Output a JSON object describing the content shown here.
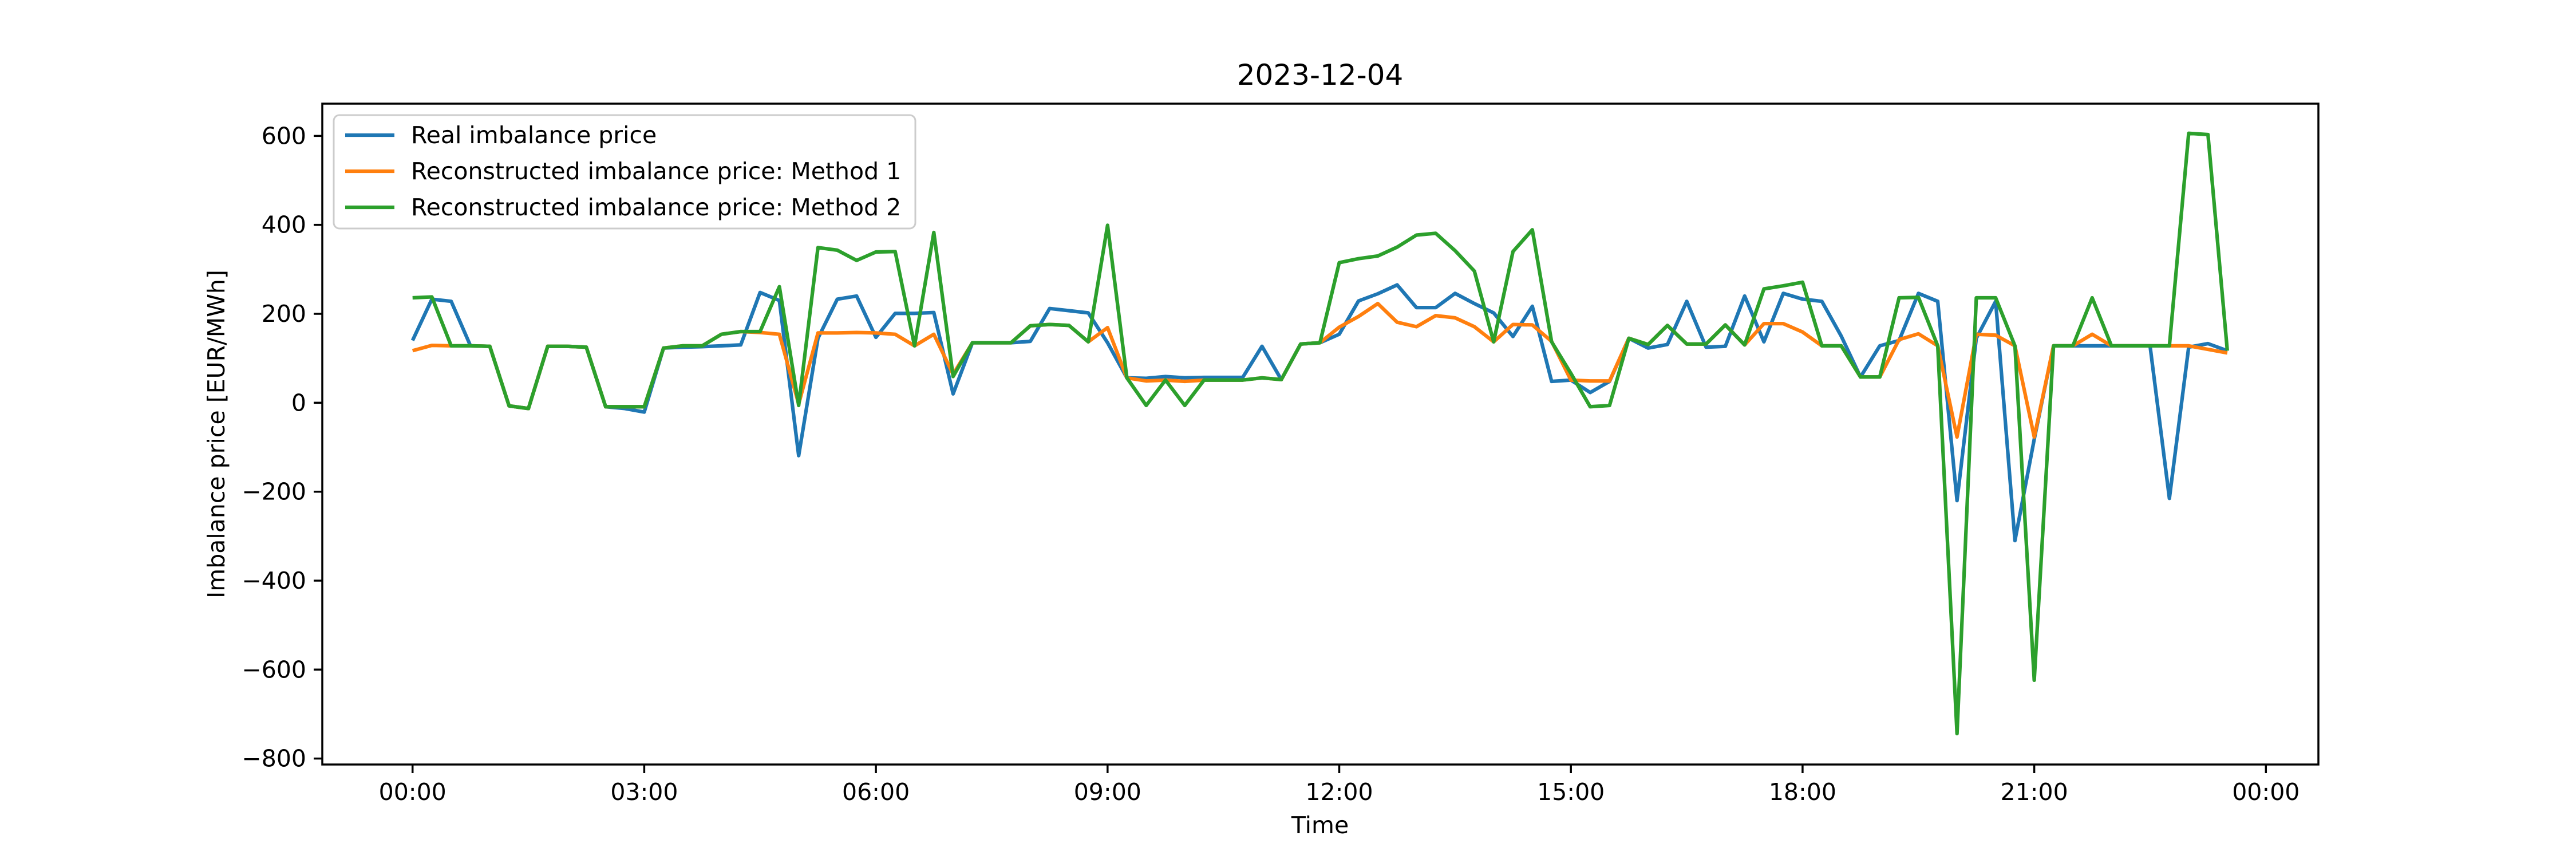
{
  "chart_data": {
    "type": "line",
    "title": "2023-12-04",
    "xlabel": "Time",
    "ylabel": "Imbalance price [EUR/MWh]",
    "xlim_hours": [
      -1.15,
      24.85
    ],
    "ylim": [
      -815,
      665
    ],
    "x_interval_minutes": 15,
    "x_start": "00:00",
    "x_tick_labels": [
      "00:00",
      "03:00",
      "06:00",
      "09:00",
      "12:00",
      "15:00",
      "18:00",
      "21:00",
      "00:00"
    ],
    "y_ticks": [
      600,
      400,
      200,
      0,
      -200,
      -400,
      -600,
      -800
    ],
    "y_tick_labels": [
      "600",
      "400",
      "200",
      "0",
      "−200",
      "−400",
      "−600",
      "−800"
    ],
    "grid": false,
    "legend_position": "top-left",
    "series": [
      {
        "name": "Real imbalance price",
        "color": "#1f77b4",
        "values": [
          140,
          233,
          228,
          128,
          127,
          -7,
          -13,
          127,
          127,
          125,
          -9,
          -13,
          -21,
          123,
          125,
          126,
          128,
          130,
          248,
          230,
          -119,
          145,
          233,
          240,
          147,
          201,
          201,
          203,
          20,
          135,
          135,
          135,
          138,
          212,
          207,
          202,
          135,
          56,
          55,
          59,
          56,
          57,
          57,
          57,
          127,
          52,
          132,
          135,
          154,
          229,
          245,
          265,
          214,
          214,
          246,
          223,
          202,
          149,
          217,
          48,
          51,
          23,
          48,
          145,
          123,
          131,
          228,
          125,
          127,
          240,
          137,
          246,
          233,
          228,
          150,
          58,
          128,
          140,
          246,
          228,
          -220,
          145,
          228,
          -310,
          -82,
          128,
          128,
          128,
          128,
          128,
          128,
          -215,
          125,
          133,
          117
        ]
      },
      {
        "name": "Reconstructed imbalance price: Method 1",
        "color": "#ff7f0e",
        "values": [
          117,
          129,
          128,
          128,
          127,
          -7,
          -13,
          127,
          127,
          125,
          -9,
          -9,
          -9,
          123,
          128,
          128,
          154,
          160,
          158,
          154,
          -3,
          157,
          157,
          158,
          157,
          154,
          128,
          154,
          64,
          135,
          135,
          135,
          173,
          176,
          174,
          137,
          169,
          56,
          49,
          51,
          48,
          51,
          51,
          51,
          56,
          52,
          132,
          135,
          170,
          194,
          223,
          181,
          171,
          196,
          191,
          171,
          137,
          176,
          175,
          138,
          51,
          49,
          49,
          145,
          131,
          174,
          132,
          132,
          175,
          130,
          178,
          178,
          159,
          128,
          128,
          58,
          58,
          142,
          155,
          128,
          -77,
          154,
          152,
          128,
          -77,
          128,
          128,
          154,
          128,
          128,
          128,
          128,
          128,
          120,
          112
        ]
      },
      {
        "name": "Reconstructed imbalance price: Method 2",
        "color": "#2ca02c",
        "values": [
          236,
          238,
          128,
          128,
          127,
          -7,
          -13,
          127,
          127,
          125,
          -9,
          -9,
          -9,
          123,
          128,
          128,
          154,
          160,
          160,
          261,
          -6,
          349,
          343,
          320,
          339,
          340,
          128,
          383,
          59,
          135,
          135,
          135,
          173,
          176,
          174,
          137,
          399,
          56,
          -6,
          51,
          -6,
          51,
          51,
          51,
          56,
          52,
          132,
          135,
          315,
          324,
          330,
          350,
          377,
          381,
          342,
          296,
          137,
          340,
          389,
          137,
          66,
          -9,
          -6,
          145,
          131,
          174,
          132,
          132,
          175,
          130,
          256,
          263,
          271,
          128,
          128,
          58,
          58,
          236,
          237,
          128,
          -744,
          236,
          236,
          128,
          -624,
          128,
          128,
          236,
          128,
          128,
          128,
          128,
          606,
          603,
          117
        ]
      }
    ]
  }
}
